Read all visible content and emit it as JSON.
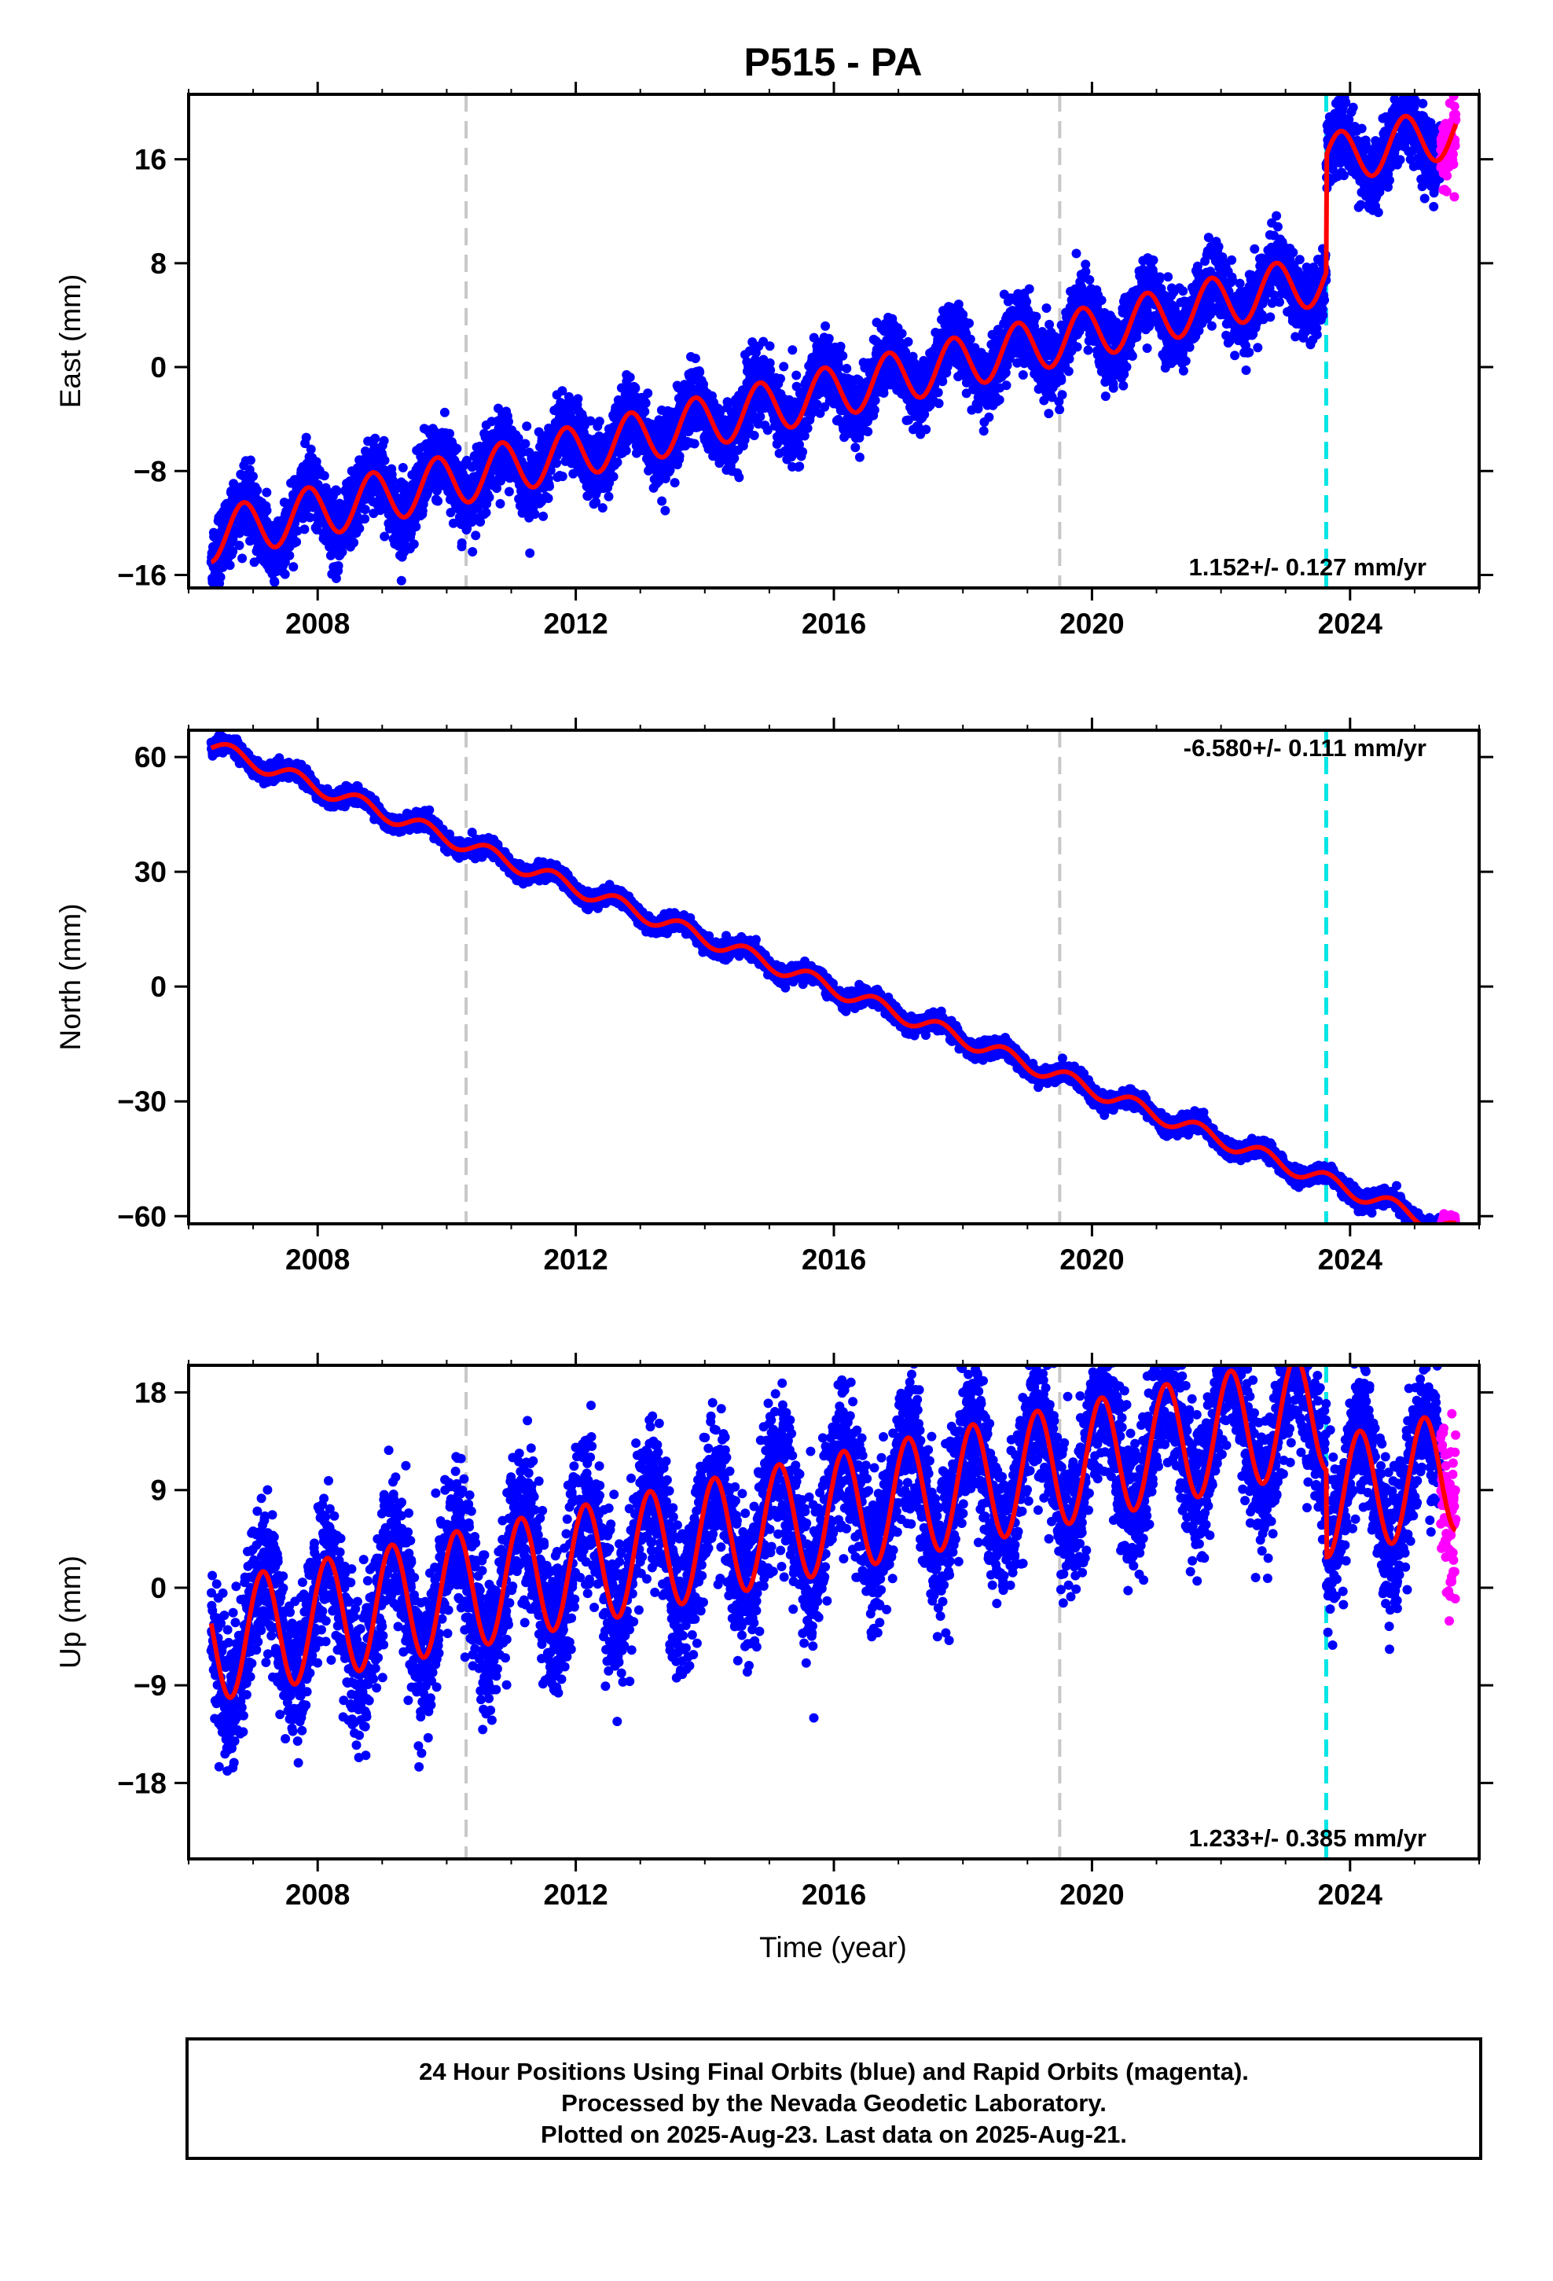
{
  "chart_data": [
    {
      "type": "scatter",
      "title": "P515 - PA",
      "ylabel": "East (mm)",
      "xlabel": "",
      "xlim": [
        2006.0,
        2026.0
      ],
      "ylim": [
        -17.0,
        21.0
      ],
      "xticks": [
        "2008",
        "2012",
        "2016",
        "2020",
        "2024"
      ],
      "yticks": [
        "-16",
        "-8",
        "0",
        "8",
        "16"
      ],
      "rate_label": "1.152+/- 0.127 mm/yr",
      "rate_position": "bottom-right",
      "model": {
        "start": 2006.35,
        "offset": -13.0,
        "rate": 1.152,
        "amplitude": 2.0,
        "phase": 0.6,
        "step_year": 2023.63,
        "step_size": 9.0
      },
      "noise_mm": 1.3,
      "rapid_start": 2025.4,
      "vertical_lines": [
        {
          "x": 2010.3,
          "style": "gray-dashed"
        },
        {
          "x": 2019.5,
          "style": "gray-dashed"
        },
        {
          "x": 2023.63,
          "style": "cyan-dashed"
        }
      ],
      "series": [
        {
          "name": "Final Orbits",
          "color": "#0000ff"
        },
        {
          "name": "Rapid Orbits",
          "color": "#ff00ff"
        },
        {
          "name": "model",
          "color": "#ff0000"
        }
      ]
    },
    {
      "type": "scatter",
      "title": "",
      "ylabel": "North (mm)",
      "xlabel": "",
      "xlim": [
        2006.0,
        2026.0
      ],
      "ylim": [
        -62.0,
        67.0
      ],
      "xticks": [
        "2008",
        "2012",
        "2016",
        "2020",
        "2024"
      ],
      "yticks": [
        "-60",
        "-30",
        "0",
        "30",
        "60"
      ],
      "rate_label": "-6.580+/- 0.111 mm/yr",
      "rate_position": "top-right",
      "model": {
        "start": 2006.35,
        "offset": 63.0,
        "rate": -6.58,
        "amplitude": 2.0,
        "phase": 0.4,
        "step_year": 2023.63,
        "step_size": 0.0
      },
      "noise_mm": 1.0,
      "rapid_start": 2025.4,
      "vertical_lines": [
        {
          "x": 2010.3,
          "style": "gray-dashed"
        },
        {
          "x": 2019.5,
          "style": "gray-dashed"
        },
        {
          "x": 2023.63,
          "style": "cyan-dashed"
        }
      ],
      "series": [
        {
          "name": "Final Orbits",
          "color": "#0000ff"
        },
        {
          "name": "Rapid Orbits",
          "color": "#ff00ff"
        },
        {
          "name": "model",
          "color": "#ff0000"
        }
      ]
    },
    {
      "type": "scatter",
      "title": "",
      "ylabel": "Up (mm)",
      "xlabel": "Time (year)",
      "xlim": [
        2006.0,
        2026.0
      ],
      "ylim": [
        -25.0,
        20.5
      ],
      "xticks": [
        "2008",
        "2012",
        "2016",
        "2020",
        "2024"
      ],
      "yticks": [
        "-18",
        "-9",
        "0",
        "9",
        "18"
      ],
      "rate_label": "1.233+/- 0.385 mm/yr",
      "rate_position": "bottom-right",
      "model": {
        "start": 2006.35,
        "offset": -5.0,
        "rate": 1.233,
        "amplitude": 5.5,
        "phase": 0.9,
        "step_year": 2023.63,
        "step_size": -8.0
      },
      "noise_mm": 3.3,
      "rapid_start": 2025.4,
      "vertical_lines": [
        {
          "x": 2010.3,
          "style": "gray-dashed"
        },
        {
          "x": 2019.5,
          "style": "gray-dashed"
        },
        {
          "x": 2023.63,
          "style": "cyan-dashed"
        }
      ],
      "series": [
        {
          "name": "Final Orbits",
          "color": "#0000ff"
        },
        {
          "name": "Rapid Orbits",
          "color": "#ff00ff"
        },
        {
          "name": "model",
          "color": "#ff0000"
        }
      ]
    }
  ],
  "footer": {
    "line1": "24 Hour Positions Using Final Orbits (blue) and Rapid Orbits (magenta).",
    "line2": "Processed by the Nevada Geodetic Laboratory.",
    "line3": "Plotted on 2025-Aug-23. Last data on 2025-Aug-21."
  },
  "colors": {
    "final": "#0000ff",
    "rapid": "#ff00ff",
    "model": "#ff0000",
    "gray_line": "#c8c8c8",
    "cyan_line": "#00e5e5"
  }
}
